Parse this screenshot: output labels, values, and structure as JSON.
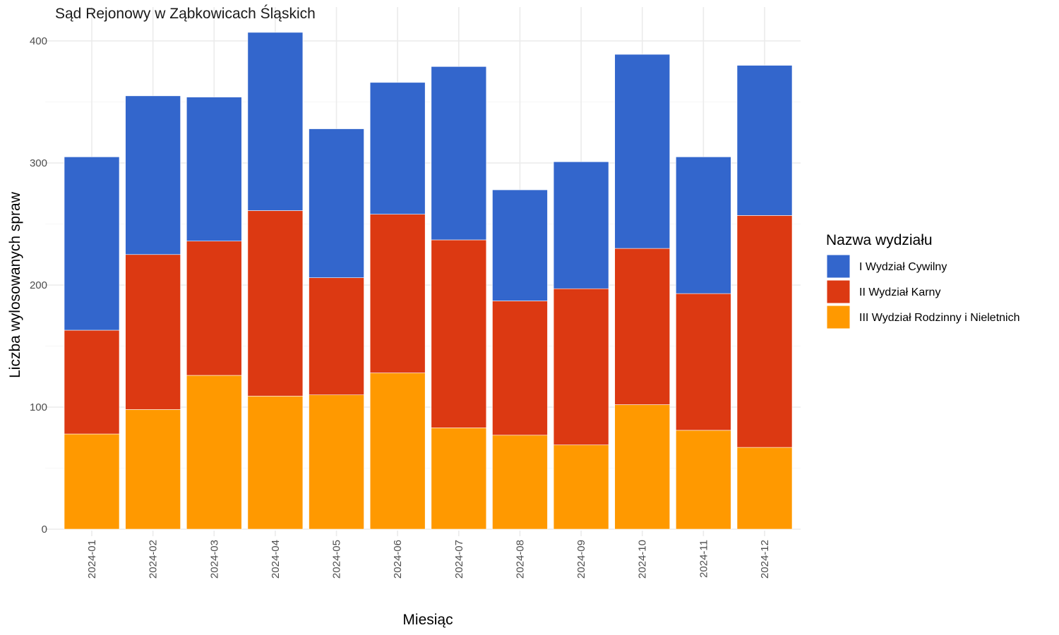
{
  "chart_data": {
    "type": "bar",
    "stacked": true,
    "title": "Sąd Rejonowy w Ząbkowicach Śląskich",
    "xlabel": "Miesiąc",
    "ylabel": "Liczba wylosowanych spraw",
    "ylim": [
      0,
      410
    ],
    "yticks": [
      0,
      100,
      200,
      300,
      400
    ],
    "ytick_labels": [
      "0",
      "100",
      "200",
      "300",
      "400"
    ],
    "grid": true,
    "legend_title": "Nazwa wydziału",
    "legend_position": "right",
    "categories": [
      "2024-01",
      "2024-02",
      "2024-03",
      "2024-04",
      "2024-05",
      "2024-06",
      "2024-07",
      "2024-08",
      "2024-09",
      "2024-10",
      "2024-11",
      "2024-12"
    ],
    "series": [
      {
        "name": "III Wydział Rodzinny i Nieletnich",
        "color": "#ff9900",
        "values": [
          78,
          98,
          126,
          109,
          110,
          128,
          83,
          77,
          69,
          102,
          81,
          67
        ]
      },
      {
        "name": "II Wydział Karny",
        "color": "#dc3912",
        "values": [
          85,
          127,
          110,
          152,
          96,
          130,
          154,
          110,
          128,
          128,
          112,
          190
        ]
      },
      {
        "name": "I Wydział Cywilny",
        "color": "#3366cc",
        "values": [
          142,
          130,
          118,
          146,
          122,
          108,
          142,
          91,
          104,
          159,
          112,
          123
        ]
      }
    ],
    "legend_order": [
      2,
      1,
      0
    ]
  }
}
